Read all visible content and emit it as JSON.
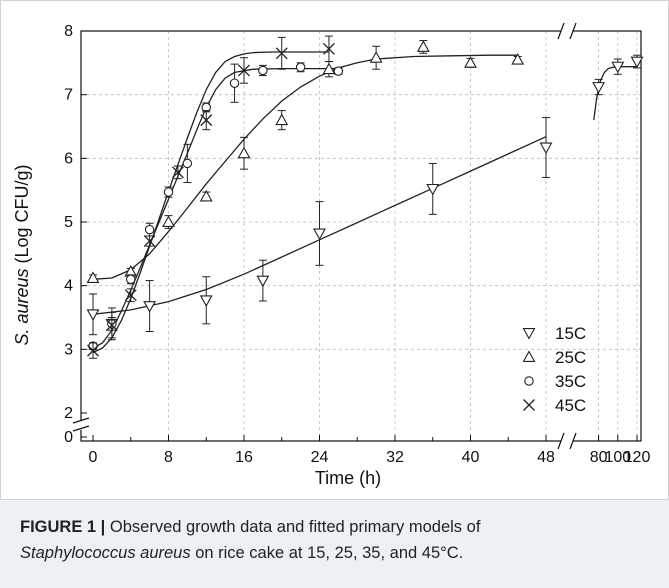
{
  "figure": {
    "caption_label": "FIGURE 1 |",
    "caption_line1": " Observed growth data and fitted primary models of",
    "caption_species": "Staphylococcus aureus",
    "caption_line2": " on rice cake at 15, 25, 35, and 45°C."
  },
  "chart_data": {
    "type": "scatter",
    "xlabel": "Time (h)",
    "ylabel_italic": "S. aureus",
    "ylabel_rest": " (Log CFU/g)",
    "x_ticks_main": [
      "0",
      "8",
      "16",
      "24",
      "32",
      "40",
      "48"
    ],
    "x_ticks_break": [
      "80",
      "100",
      "120"
    ],
    "y_ticks": [
      "0",
      "2",
      "3",
      "4",
      "5",
      "6",
      "7",
      "8"
    ],
    "xlim_main": [
      -1,
      49
    ],
    "xlim_break": [
      66,
      122
    ],
    "ylim": [
      0,
      8
    ],
    "axis_break_x": "48-80",
    "axis_break_y": "0-2",
    "grid": true,
    "legend_position": "bottom-right",
    "series": [
      {
        "name": "15C",
        "marker": "triangle-down",
        "x": [
          0,
          2,
          6,
          12,
          18,
          24,
          36,
          48,
          80,
          100,
          120
        ],
        "y": [
          3.55,
          3.4,
          3.68,
          3.77,
          4.08,
          4.82,
          5.52,
          6.17,
          7.12,
          7.44,
          7.52
        ],
        "err": [
          0.32,
          0.25,
          0.4,
          0.37,
          0.32,
          0.5,
          0.4,
          0.47,
          0.12,
          0.12,
          0.1
        ]
      },
      {
        "name": "25C",
        "marker": "triangle-up",
        "x": [
          0,
          4,
          8,
          12,
          16,
          20,
          25,
          30,
          35,
          40,
          45
        ],
        "y": [
          4.12,
          4.22,
          5.0,
          5.4,
          6.08,
          6.6,
          7.4,
          7.58,
          7.75,
          7.5,
          7.55
        ],
        "err": [
          0.05,
          0.05,
          0.1,
          0.07,
          0.25,
          0.15,
          0.12,
          0.18,
          0.1,
          0.07,
          0.05
        ]
      },
      {
        "name": "35C",
        "marker": "circle",
        "x": [
          0,
          2,
          4,
          6,
          8,
          10,
          12,
          15,
          18,
          22,
          26
        ],
        "y": [
          3.05,
          3.4,
          4.1,
          4.88,
          5.47,
          5.92,
          6.8,
          7.18,
          7.38,
          7.43,
          7.37
        ],
        "err": [
          0.05,
          0.1,
          0.07,
          0.1,
          0.08,
          0.3,
          0.07,
          0.3,
          0.08,
          0.07,
          0.05
        ]
      },
      {
        "name": "45C",
        "marker": "cross",
        "x": [
          0,
          2,
          4,
          6,
          9,
          12,
          16,
          20,
          25
        ],
        "y": [
          2.98,
          3.38,
          3.85,
          4.7,
          5.78,
          6.6,
          7.38,
          7.65,
          7.72
        ],
        "err": [
          0.12,
          0.2,
          0.1,
          0.08,
          0.1,
          0.15,
          0.2,
          0.25,
          0.2
        ]
      }
    ],
    "fits": [
      {
        "name": "15C",
        "x": [
          0,
          4,
          8,
          12,
          16,
          20,
          24,
          28,
          32,
          36,
          40,
          44,
          48
        ],
        "y": [
          3.55,
          3.62,
          3.75,
          3.94,
          4.18,
          4.45,
          4.72,
          4.99,
          5.26,
          5.53,
          5.8,
          6.07,
          6.34
        ]
      },
      {
        "name": "15C-late",
        "x": [
          75,
          78,
          82,
          86,
          90,
          95,
          100,
          110,
          120
        ],
        "y": [
          6.6,
          6.95,
          7.22,
          7.35,
          7.41,
          7.43,
          7.44,
          7.44,
          7.44
        ]
      },
      {
        "name": "25C",
        "x": [
          0,
          2,
          4,
          6,
          8,
          10,
          12,
          14,
          16,
          18,
          20,
          22,
          24,
          26,
          28,
          30,
          34,
          38,
          42,
          45
        ],
        "y": [
          4.1,
          4.12,
          4.25,
          4.5,
          4.85,
          5.22,
          5.6,
          5.95,
          6.3,
          6.62,
          6.9,
          7.12,
          7.29,
          7.42,
          7.5,
          7.56,
          7.6,
          7.61,
          7.62,
          7.62
        ]
      },
      {
        "name": "35C",
        "x": [
          0,
          1,
          2,
          3,
          4,
          5,
          6,
          7,
          8,
          9,
          10,
          11,
          12,
          13,
          14,
          15,
          17,
          20,
          23,
          26
        ],
        "y": [
          3.02,
          3.1,
          3.3,
          3.6,
          3.93,
          4.28,
          4.64,
          5.0,
          5.36,
          5.72,
          6.08,
          6.45,
          6.8,
          7.08,
          7.26,
          7.35,
          7.4,
          7.41,
          7.41,
          7.41
        ]
      },
      {
        "name": "45C",
        "x": [
          0,
          1,
          2,
          3,
          4,
          5,
          6,
          7,
          8,
          9,
          10,
          11,
          12,
          13,
          14,
          15,
          16,
          17,
          19,
          22,
          25
        ],
        "y": [
          2.95,
          3.02,
          3.18,
          3.45,
          3.8,
          4.2,
          4.62,
          5.05,
          5.48,
          5.9,
          6.32,
          6.72,
          7.08,
          7.35,
          7.52,
          7.6,
          7.64,
          7.66,
          7.67,
          7.67,
          7.67
        ]
      }
    ]
  }
}
